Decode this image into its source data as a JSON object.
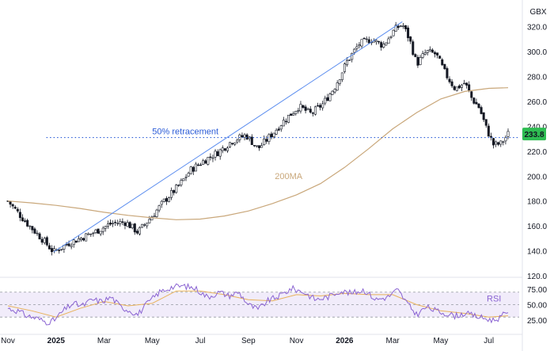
{
  "chart_data": {
    "type": "candlestick",
    "currency_label": "GBX",
    "price_axis": {
      "ylim": [
        120,
        330
      ],
      "ticks": [
        "120.0",
        "140.0",
        "160.0",
        "180.0",
        "200.0",
        "220.0",
        "240.0",
        "260.0",
        "280.0",
        "300.0",
        "320.0"
      ]
    },
    "x_axis": {
      "ticks": [
        "Nov",
        "2025",
        "Mar",
        "May",
        "Jul",
        "Sep",
        "Nov",
        "2026",
        "Mar",
        "May",
        "Jul"
      ],
      "bold_ticks": [
        "2025",
        "2026"
      ],
      "months": 21
    },
    "price_path": [
      [
        0,
        180
      ],
      [
        0.8,
        162
      ],
      [
        1.4,
        150
      ],
      [
        1.9,
        139
      ],
      [
        2.5,
        146
      ],
      [
        3.0,
        150
      ],
      [
        3.6,
        155
      ],
      [
        4.3,
        162
      ],
      [
        4.9,
        163
      ],
      [
        5.4,
        155
      ],
      [
        6.0,
        168
      ],
      [
        6.5,
        180
      ],
      [
        7.1,
        192
      ],
      [
        7.6,
        205
      ],
      [
        8.2,
        213
      ],
      [
        8.8,
        220
      ],
      [
        9.3,
        228
      ],
      [
        9.9,
        233
      ],
      [
        10.4,
        222
      ],
      [
        10.9,
        232
      ],
      [
        11.5,
        245
      ],
      [
        12.1,
        256
      ],
      [
        12.6,
        250
      ],
      [
        13.1,
        258
      ],
      [
        13.6,
        272
      ],
      [
        14.1,
        292
      ],
      [
        14.6,
        306
      ],
      [
        15.1,
        310
      ],
      [
        15.6,
        305
      ],
      [
        16.1,
        318
      ],
      [
        16.4,
        322
      ],
      [
        16.7,
        310
      ],
      [
        17.0,
        290
      ],
      [
        17.4,
        300
      ],
      [
        17.8,
        298
      ],
      [
        18.2,
        282
      ],
      [
        18.6,
        270
      ],
      [
        19.0,
        275
      ],
      [
        19.3,
        262
      ],
      [
        19.6,
        255
      ],
      [
        19.9,
        238
      ],
      [
        20.2,
        225
      ],
      [
        20.5,
        226
      ],
      [
        20.8,
        233.8
      ]
    ],
    "series": [
      {
        "name": "200MA",
        "color": "#c9a77a",
        "points": [
          [
            0,
            180
          ],
          [
            1,
            178.5
          ],
          [
            2,
            176.5
          ],
          [
            3,
            174
          ],
          [
            4,
            171
          ],
          [
            5,
            168.5
          ],
          [
            6,
            166.5
          ],
          [
            7,
            165
          ],
          [
            8,
            165.5
          ],
          [
            9,
            168
          ],
          [
            10,
            172
          ],
          [
            11,
            178
          ],
          [
            12,
            185
          ],
          [
            13,
            194
          ],
          [
            14,
            207
          ],
          [
            15,
            222
          ],
          [
            16,
            238
          ],
          [
            17,
            251
          ],
          [
            18,
            262
          ],
          [
            19,
            268
          ],
          [
            20,
            270.5
          ],
          [
            20.8,
            271
          ]
        ]
      }
    ],
    "trendline": {
      "color": "#5b8def",
      "from": [
        1.9,
        139
      ],
      "to": [
        16.4,
        324
      ]
    },
    "retracement": {
      "label": "50% retracement",
      "value": 231,
      "color": "#2a5bd7"
    },
    "last_price": {
      "label": "233.8",
      "value": 233.8,
      "color": "#2ebd52"
    },
    "rsi": {
      "label": "RSI",
      "ylim": [
        15,
        90
      ],
      "ticks": [
        "25.00",
        "50.00",
        "75.00"
      ],
      "band": [
        30,
        70
      ],
      "color": "#8a63d2",
      "signal_color": "#e8b25a",
      "path": [
        [
          0,
          44
        ],
        [
          0.4,
          40
        ],
        [
          0.8,
          32
        ],
        [
          1.2,
          28
        ],
        [
          1.6,
          22
        ],
        [
          1.9,
          24
        ],
        [
          2.3,
          40
        ],
        [
          2.7,
          52
        ],
        [
          3.1,
          48
        ],
        [
          3.5,
          58
        ],
        [
          3.9,
          55
        ],
        [
          4.3,
          62
        ],
        [
          4.7,
          46
        ],
        [
          5.1,
          40
        ],
        [
          5.4,
          34
        ],
        [
          5.8,
          52
        ],
        [
          6.3,
          70
        ],
        [
          6.8,
          78
        ],
        [
          7.3,
          80
        ],
        [
          7.8,
          76
        ],
        [
          8.3,
          62
        ],
        [
          8.8,
          70
        ],
        [
          9.2,
          64
        ],
        [
          9.6,
          70
        ],
        [
          10.0,
          50
        ],
        [
          10.4,
          42
        ],
        [
          10.8,
          56
        ],
        [
          11.3,
          64
        ],
        [
          11.8,
          76
        ],
        [
          12.3,
          70
        ],
        [
          12.8,
          58
        ],
        [
          13.3,
          62
        ],
        [
          13.8,
          72
        ],
        [
          14.3,
          68
        ],
        [
          14.8,
          74
        ],
        [
          15.3,
          58
        ],
        [
          15.8,
          62
        ],
        [
          16.2,
          74
        ],
        [
          16.6,
          52
        ],
        [
          17.0,
          34
        ],
        [
          17.4,
          46
        ],
        [
          17.8,
          40
        ],
        [
          18.2,
          36
        ],
        [
          18.6,
          32
        ],
        [
          19.0,
          36
        ],
        [
          19.4,
          32
        ],
        [
          19.8,
          28
        ],
        [
          20.2,
          25
        ],
        [
          20.5,
          30
        ],
        [
          20.8,
          40
        ]
      ],
      "signal_path": [
        [
          0,
          48
        ],
        [
          1,
          40
        ],
        [
          2,
          30
        ],
        [
          3,
          44
        ],
        [
          4,
          55
        ],
        [
          5,
          48
        ],
        [
          6,
          52
        ],
        [
          7,
          72
        ],
        [
          8,
          72
        ],
        [
          9,
          66
        ],
        [
          10,
          58
        ],
        [
          11,
          56
        ],
        [
          12,
          66
        ],
        [
          13,
          64
        ],
        [
          14,
          68
        ],
        [
          15,
          66
        ],
        [
          16,
          66
        ],
        [
          17,
          50
        ],
        [
          18,
          40
        ],
        [
          19,
          36
        ],
        [
          20,
          30
        ],
        [
          20.8,
          32
        ]
      ]
    }
  }
}
